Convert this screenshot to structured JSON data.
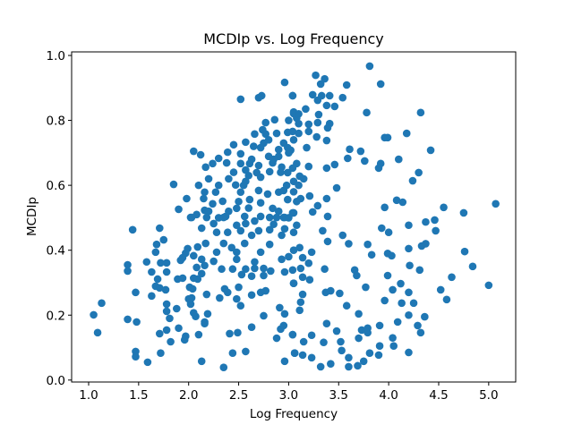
{
  "chart_data": {
    "type": "scatter",
    "title": "MCDIp vs. Log Frequency",
    "xlabel": "Log Frequency",
    "ylabel": "MCDIp",
    "xlim": [
      0.83,
      5.27
    ],
    "ylim": [
      -0.006,
      1.011
    ],
    "xticks": [
      1.0,
      1.5,
      2.0,
      2.5,
      3.0,
      3.5,
      4.0,
      4.5,
      5.0
    ],
    "xtick_labels": [
      "1.0",
      "1.5",
      "2.0",
      "2.5",
      "3.0",
      "3.5",
      "4.0",
      "4.5",
      "5.0"
    ],
    "yticks": [
      0.0,
      0.2,
      0.4,
      0.6,
      0.8,
      1.0
    ],
    "ytick_labels": [
      "0.0",
      "0.2",
      "0.4",
      "0.6",
      "0.8",
      "1.0"
    ],
    "grid": false,
    "color": "#1f77b4",
    "points": [
      [
        3.93,
        0.468
      ],
      [
        4.0,
        0.455
      ],
      [
        4.2,
        0.477
      ],
      [
        4.37,
        0.487
      ],
      [
        4.46,
        0.493
      ],
      [
        4.47,
        0.46
      ],
      [
        3.34,
        0.46
      ],
      [
        3.54,
        0.446
      ],
      [
        3.6,
        0.42
      ],
      [
        3.79,
        0.418
      ],
      [
        3.83,
        0.386
      ],
      [
        3.99,
        0.39
      ],
      [
        4.03,
        0.383
      ],
      [
        4.2,
        0.405
      ],
      [
        4.33,
        0.413
      ],
      [
        4.37,
        0.42
      ],
      [
        4.76,
        0.396
      ],
      [
        4.84,
        0.35
      ],
      [
        5.0,
        0.292
      ],
      [
        4.63,
        0.317
      ],
      [
        4.52,
        0.278
      ],
      [
        4.58,
        0.248
      ],
      [
        4.21,
        0.353
      ],
      [
        4.31,
        0.339
      ],
      [
        4.12,
        0.297
      ],
      [
        4.04,
        0.278
      ],
      [
        4.2,
        0.27
      ],
      [
        3.96,
        0.245
      ],
      [
        4.13,
        0.237
      ],
      [
        4.25,
        0.237
      ],
      [
        4.2,
        0.2
      ],
      [
        4.36,
        0.195
      ],
      [
        4.09,
        0.179
      ],
      [
        4.29,
        0.168
      ],
      [
        4.32,
        0.146
      ],
      [
        3.91,
        0.168
      ],
      [
        4.04,
        0.13
      ],
      [
        4.05,
        0.105
      ],
      [
        4.2,
        0.085
      ],
      [
        3.91,
        0.105
      ],
      [
        3.9,
        0.077
      ],
      [
        3.81,
        0.083
      ],
      [
        3.75,
        0.058
      ],
      [
        3.69,
        0.044
      ],
      [
        3.6,
        0.041
      ],
      [
        3.6,
        0.069
      ],
      [
        3.42,
        0.05
      ],
      [
        3.32,
        0.041
      ],
      [
        3.23,
        0.069
      ],
      [
        3.14,
        0.077
      ],
      [
        3.06,
        0.083
      ],
      [
        3.53,
        0.091
      ],
      [
        3.52,
        0.118
      ],
      [
        3.48,
        0.151
      ],
      [
        3.38,
        0.174
      ],
      [
        3.35,
        0.116
      ],
      [
        3.23,
        0.138
      ],
      [
        3.15,
        0.118
      ],
      [
        3.04,
        0.14
      ],
      [
        3.7,
        0.204
      ],
      [
        3.73,
        0.154
      ],
      [
        3.79,
        0.16
      ],
      [
        3.79,
        0.146
      ],
      [
        3.7,
        0.129
      ],
      [
        3.58,
        0.229
      ],
      [
        3.51,
        0.267
      ],
      [
        3.42,
        0.275
      ],
      [
        3.37,
        0.27
      ],
      [
        3.77,
        0.286
      ],
      [
        3.66,
        0.339
      ],
      [
        3.68,
        0.322
      ],
      [
        3.36,
        0.342
      ],
      [
        3.14,
        0.264
      ],
      [
        3.12,
        0.24
      ],
      [
        3.11,
        0.215
      ],
      [
        3.99,
        0.322
      ],
      [
        3.39,
        0.427
      ],
      [
        3.08,
        0.477
      ],
      [
        3.05,
        0.4
      ],
      [
        3.11,
        0.408
      ],
      [
        3.14,
        0.377
      ],
      [
        3.2,
        0.36
      ],
      [
        3.12,
        0.344
      ],
      [
        3.04,
        0.339
      ],
      [
        3.14,
        0.317
      ],
      [
        3.21,
        0.309
      ],
      [
        3.05,
        0.298
      ],
      [
        3.23,
        0.394
      ],
      [
        3.81,
        0.967
      ],
      [
        3.27,
        0.939
      ],
      [
        3.36,
        0.928
      ],
      [
        3.32,
        0.912
      ],
      [
        3.58,
        0.909
      ],
      [
        3.92,
        0.912
      ],
      [
        3.04,
        0.876
      ],
      [
        3.24,
        0.879
      ],
      [
        3.33,
        0.876
      ],
      [
        3.41,
        0.876
      ],
      [
        3.54,
        0.87
      ],
      [
        3.38,
        0.846
      ],
      [
        3.46,
        0.843
      ],
      [
        3.29,
        0.862
      ],
      [
        3.17,
        0.835
      ],
      [
        3.05,
        0.826
      ],
      [
        3.78,
        0.824
      ],
      [
        4.32,
        0.824
      ],
      [
        3.08,
        0.807
      ],
      [
        3.3,
        0.818
      ],
      [
        3.29,
        0.793
      ],
      [
        3.41,
        0.79
      ],
      [
        3.39,
        0.777
      ],
      [
        3.2,
        0.788
      ],
      [
        3.1,
        0.79
      ],
      [
        3.04,
        0.766
      ],
      [
        3.2,
        0.766
      ],
      [
        3.28,
        0.749
      ],
      [
        3.38,
        0.738
      ],
      [
        4.18,
        0.76
      ],
      [
        3.96,
        0.747
      ],
      [
        3.99,
        0.747
      ],
      [
        4.42,
        0.708
      ],
      [
        3.61,
        0.711
      ],
      [
        3.59,
        0.683
      ],
      [
        3.72,
        0.705
      ],
      [
        3.76,
        0.675
      ],
      [
        4.1,
        0.68
      ],
      [
        3.18,
        0.716
      ],
      [
        3.02,
        0.708
      ],
      [
        3.92,
        0.667
      ],
      [
        3.9,
        0.653
      ],
      [
        3.38,
        0.653
      ],
      [
        3.46,
        0.664
      ],
      [
        3.2,
        0.658
      ],
      [
        3.08,
        0.667
      ],
      [
        3.11,
        0.628
      ],
      [
        3.05,
        0.612
      ],
      [
        4.3,
        0.639
      ],
      [
        4.24,
        0.614
      ],
      [
        3.48,
        0.592
      ],
      [
        3.21,
        0.567
      ],
      [
        3.12,
        0.559
      ],
      [
        3.38,
        0.559
      ],
      [
        3.29,
        0.537
      ],
      [
        3.24,
        0.518
      ],
      [
        3.39,
        0.504
      ],
      [
        3.96,
        0.532
      ],
      [
        4.08,
        0.554
      ],
      [
        4.14,
        0.548
      ],
      [
        4.55,
        0.532
      ],
      [
        4.75,
        0.515
      ],
      [
        5.07,
        0.543
      ],
      [
        3.05,
        0.515
      ],
      [
        2.96,
        0.917
      ],
      [
        2.52,
        0.865
      ],
      [
        2.7,
        0.87
      ],
      [
        2.73,
        0.876
      ],
      [
        3.04,
        0.876
      ],
      [
        2.86,
        0.802
      ],
      [
        2.77,
        0.793
      ],
      [
        2.88,
        0.76
      ],
      [
        2.66,
        0.758
      ],
      [
        2.74,
        0.771
      ],
      [
        2.77,
        0.758
      ],
      [
        2.99,
        0.763
      ],
      [
        3.05,
        0.821
      ],
      [
        2.57,
        0.733
      ],
      [
        2.75,
        0.73
      ],
      [
        2.72,
        0.716
      ],
      [
        2.99,
        0.716
      ],
      [
        2.45,
        0.725
      ],
      [
        2.39,
        0.702
      ],
      [
        2.05,
        0.705
      ],
      [
        2.12,
        0.694
      ],
      [
        2.3,
        0.683
      ],
      [
        2.24,
        0.667
      ],
      [
        2.17,
        0.656
      ],
      [
        2.38,
        0.669
      ],
      [
        2.52,
        0.697
      ],
      [
        2.52,
        0.667
      ],
      [
        2.63,
        0.68
      ],
      [
        2.8,
        0.689
      ],
      [
        2.9,
        0.689
      ],
      [
        2.61,
        0.667
      ],
      [
        2.7,
        0.661
      ],
      [
        2.84,
        0.669
      ],
      [
        2.93,
        0.656
      ],
      [
        2.68,
        0.639
      ],
      [
        2.81,
        0.642
      ],
      [
        2.72,
        0.625
      ],
      [
        2.99,
        0.639
      ],
      [
        3.04,
        0.653
      ],
      [
        2.57,
        0.647
      ],
      [
        1.85,
        0.603
      ],
      [
        1.98,
        0.559
      ],
      [
        1.9,
        0.526
      ],
      [
        2.16,
        0.579
      ],
      [
        2.27,
        0.579
      ],
      [
        2.15,
        0.559
      ],
      [
        2.34,
        0.551
      ],
      [
        2.24,
        0.543
      ],
      [
        2.47,
        0.601
      ],
      [
        2.57,
        0.612
      ],
      [
        2.52,
        0.579
      ],
      [
        2.61,
        0.556
      ],
      [
        2.7,
        0.584
      ],
      [
        2.79,
        0.573
      ],
      [
        2.9,
        0.579
      ],
      [
        2.95,
        0.584
      ],
      [
        2.99,
        0.556
      ],
      [
        2.84,
        0.529
      ],
      [
        2.72,
        0.546
      ],
      [
        2.48,
        0.529
      ],
      [
        2.56,
        0.504
      ],
      [
        2.72,
        0.504
      ],
      [
        2.81,
        0.501
      ],
      [
        2.95,
        0.501
      ],
      [
        3.04,
        0.515
      ],
      [
        2.08,
        0.51
      ],
      [
        2.16,
        0.523
      ],
      [
        2.02,
        0.501
      ],
      [
        2.37,
        0.504
      ],
      [
        1.44,
        0.463
      ],
      [
        1.71,
        0.468
      ],
      [
        1.75,
        0.432
      ],
      [
        1.68,
        0.418
      ],
      [
        1.67,
        0.394
      ],
      [
        1.39,
        0.355
      ],
      [
        1.39,
        0.336
      ],
      [
        1.58,
        0.364
      ],
      [
        1.72,
        0.361
      ],
      [
        1.78,
        0.361
      ],
      [
        1.63,
        0.333
      ],
      [
        1.78,
        0.333
      ],
      [
        1.69,
        0.311
      ],
      [
        1.67,
        0.289
      ],
      [
        1.71,
        0.284
      ],
      [
        1.77,
        0.278
      ],
      [
        1.63,
        0.259
      ],
      [
        1.47,
        0.27
      ],
      [
        1.13,
        0.237
      ],
      [
        1.05,
        0.201
      ],
      [
        1.09,
        0.146
      ],
      [
        1.39,
        0.187
      ],
      [
        1.48,
        0.179
      ],
      [
        1.78,
        0.234
      ],
      [
        1.78,
        0.212
      ],
      [
        1.81,
        0.19
      ],
      [
        1.88,
        0.22
      ],
      [
        1.71,
        0.143
      ],
      [
        1.78,
        0.154
      ],
      [
        1.82,
        0.118
      ],
      [
        1.9,
        0.16
      ],
      [
        1.97,
        0.135
      ],
      [
        1.96,
        0.124
      ],
      [
        2.1,
        0.14
      ],
      [
        2.16,
        0.174
      ],
      [
        1.47,
        0.088
      ],
      [
        1.47,
        0.072
      ],
      [
        1.59,
        0.055
      ],
      [
        1.72,
        0.083
      ],
      [
        2.13,
        0.058
      ],
      [
        2.35,
        0.039
      ],
      [
        2.44,
        0.083
      ],
      [
        2.57,
        0.088
      ],
      [
        2.41,
        0.143
      ],
      [
        2.49,
        0.146
      ],
      [
        2.63,
        0.163
      ],
      [
        2.88,
        0.129
      ],
      [
        2.92,
        0.157
      ],
      [
        2.95,
        0.168
      ],
      [
        3.04,
        0.14
      ],
      [
        2.96,
        0.058
      ],
      [
        3.06,
        0.083
      ],
      [
        2.75,
        0.198
      ],
      [
        2.91,
        0.223
      ],
      [
        2.96,
        0.204
      ],
      [
        2.19,
        0.204
      ],
      [
        2.07,
        0.196
      ],
      [
        2.05,
        0.207
      ],
      [
        2.16,
        0.179
      ],
      [
        2.02,
        0.234
      ],
      [
        2.03,
        0.253
      ],
      [
        2.0,
        0.25
      ],
      [
        2.18,
        0.264
      ],
      [
        2.31,
        0.253
      ],
      [
        2.48,
        0.25
      ],
      [
        2.52,
        0.229
      ],
      [
        2.63,
        0.262
      ],
      [
        2.72,
        0.27
      ],
      [
        2.77,
        0.275
      ],
      [
        2.36,
        0.281
      ],
      [
        2.39,
        0.27
      ],
      [
        2.5,
        0.286
      ],
      [
        2.01,
        0.286
      ],
      [
        2.04,
        0.281
      ],
      [
        1.89,
        0.311
      ],
      [
        1.94,
        0.314
      ],
      [
        2.05,
        0.314
      ],
      [
        2.09,
        0.311
      ],
      [
        2.13,
        0.328
      ],
      [
        2.08,
        0.347
      ],
      [
        2.16,
        0.353
      ],
      [
        1.92,
        0.369
      ],
      [
        1.97,
        0.391
      ],
      [
        1.99,
        0.405
      ],
      [
        2.05,
        0.383
      ],
      [
        2.13,
        0.372
      ],
      [
        2.09,
        0.41
      ],
      [
        2.17,
        0.421
      ],
      [
        2.25,
        0.366
      ],
      [
        2.28,
        0.394
      ],
      [
        2.33,
        0.342
      ],
      [
        2.44,
        0.342
      ],
      [
        2.53,
        0.325
      ],
      [
        2.63,
        0.32
      ],
      [
        2.75,
        0.322
      ],
      [
        2.82,
        0.336
      ],
      [
        2.96,
        0.333
      ],
      [
        3.05,
        0.298
      ],
      [
        2.48,
        0.372
      ],
      [
        2.57,
        0.342
      ],
      [
        2.66,
        0.364
      ],
      [
        2.72,
        0.394
      ],
      [
        2.81,
        0.418
      ],
      [
        2.35,
        0.421
      ],
      [
        2.43,
        0.408
      ],
      [
        2.48,
        0.394
      ],
      [
        2.56,
        0.421
      ],
      [
        2.63,
        0.446
      ],
      [
        2.7,
        0.46
      ],
      [
        2.81,
        0.463
      ],
      [
        2.93,
        0.446
      ],
      [
        2.96,
        0.466
      ],
      [
        2.52,
        0.46
      ],
      [
        2.48,
        0.477
      ],
      [
        2.57,
        0.482
      ],
      [
        2.66,
        0.49
      ],
      [
        2.39,
        0.455
      ],
      [
        2.28,
        0.455
      ],
      [
        2.25,
        0.482
      ],
      [
        2.13,
        0.468
      ],
      [
        2.03,
        0.501
      ],
      [
        2.18,
        0.501
      ],
      [
        2.35,
        0.501
      ],
      [
        2.88,
        0.501
      ],
      [
        2.96,
        0.501
      ],
      [
        3.05,
        0.455
      ],
      [
        2.93,
        0.372
      ],
      [
        3.0,
        0.38
      ],
      [
        2.75,
        0.344
      ],
      [
        2.66,
        0.344
      ],
      [
        1.94,
        0.377
      ],
      [
        3.05,
        0.58
      ],
      [
        3.1,
        0.6
      ],
      [
        3.15,
        0.62
      ],
      [
        2.98,
        0.6
      ],
      [
        3.0,
        0.7
      ],
      [
        3.05,
        0.74
      ],
      [
        3.1,
        0.76
      ],
      [
        2.95,
        0.73
      ],
      [
        2.9,
        0.71
      ],
      [
        3.0,
        0.8
      ],
      [
        3.1,
        0.82
      ],
      [
        2.92,
        0.64
      ],
      [
        3.08,
        0.55
      ],
      [
        3.0,
        0.5
      ],
      [
        2.85,
        0.48
      ],
      [
        2.9,
        0.52
      ],
      [
        2.6,
        0.63
      ],
      [
        2.45,
        0.64
      ],
      [
        2.4,
        0.62
      ],
      [
        2.3,
        0.6
      ],
      [
        2.2,
        0.62
      ],
      [
        2.1,
        0.6
      ],
      [
        2.2,
        0.52
      ],
      [
        2.3,
        0.5
      ],
      [
        2.4,
        0.52
      ],
      [
        2.5,
        0.55
      ],
      [
        2.6,
        0.53
      ],
      [
        2.55,
        0.6
      ],
      [
        2.65,
        0.72
      ],
      [
        2.8,
        0.74
      ],
      [
        2.85,
        0.68
      ]
    ]
  }
}
